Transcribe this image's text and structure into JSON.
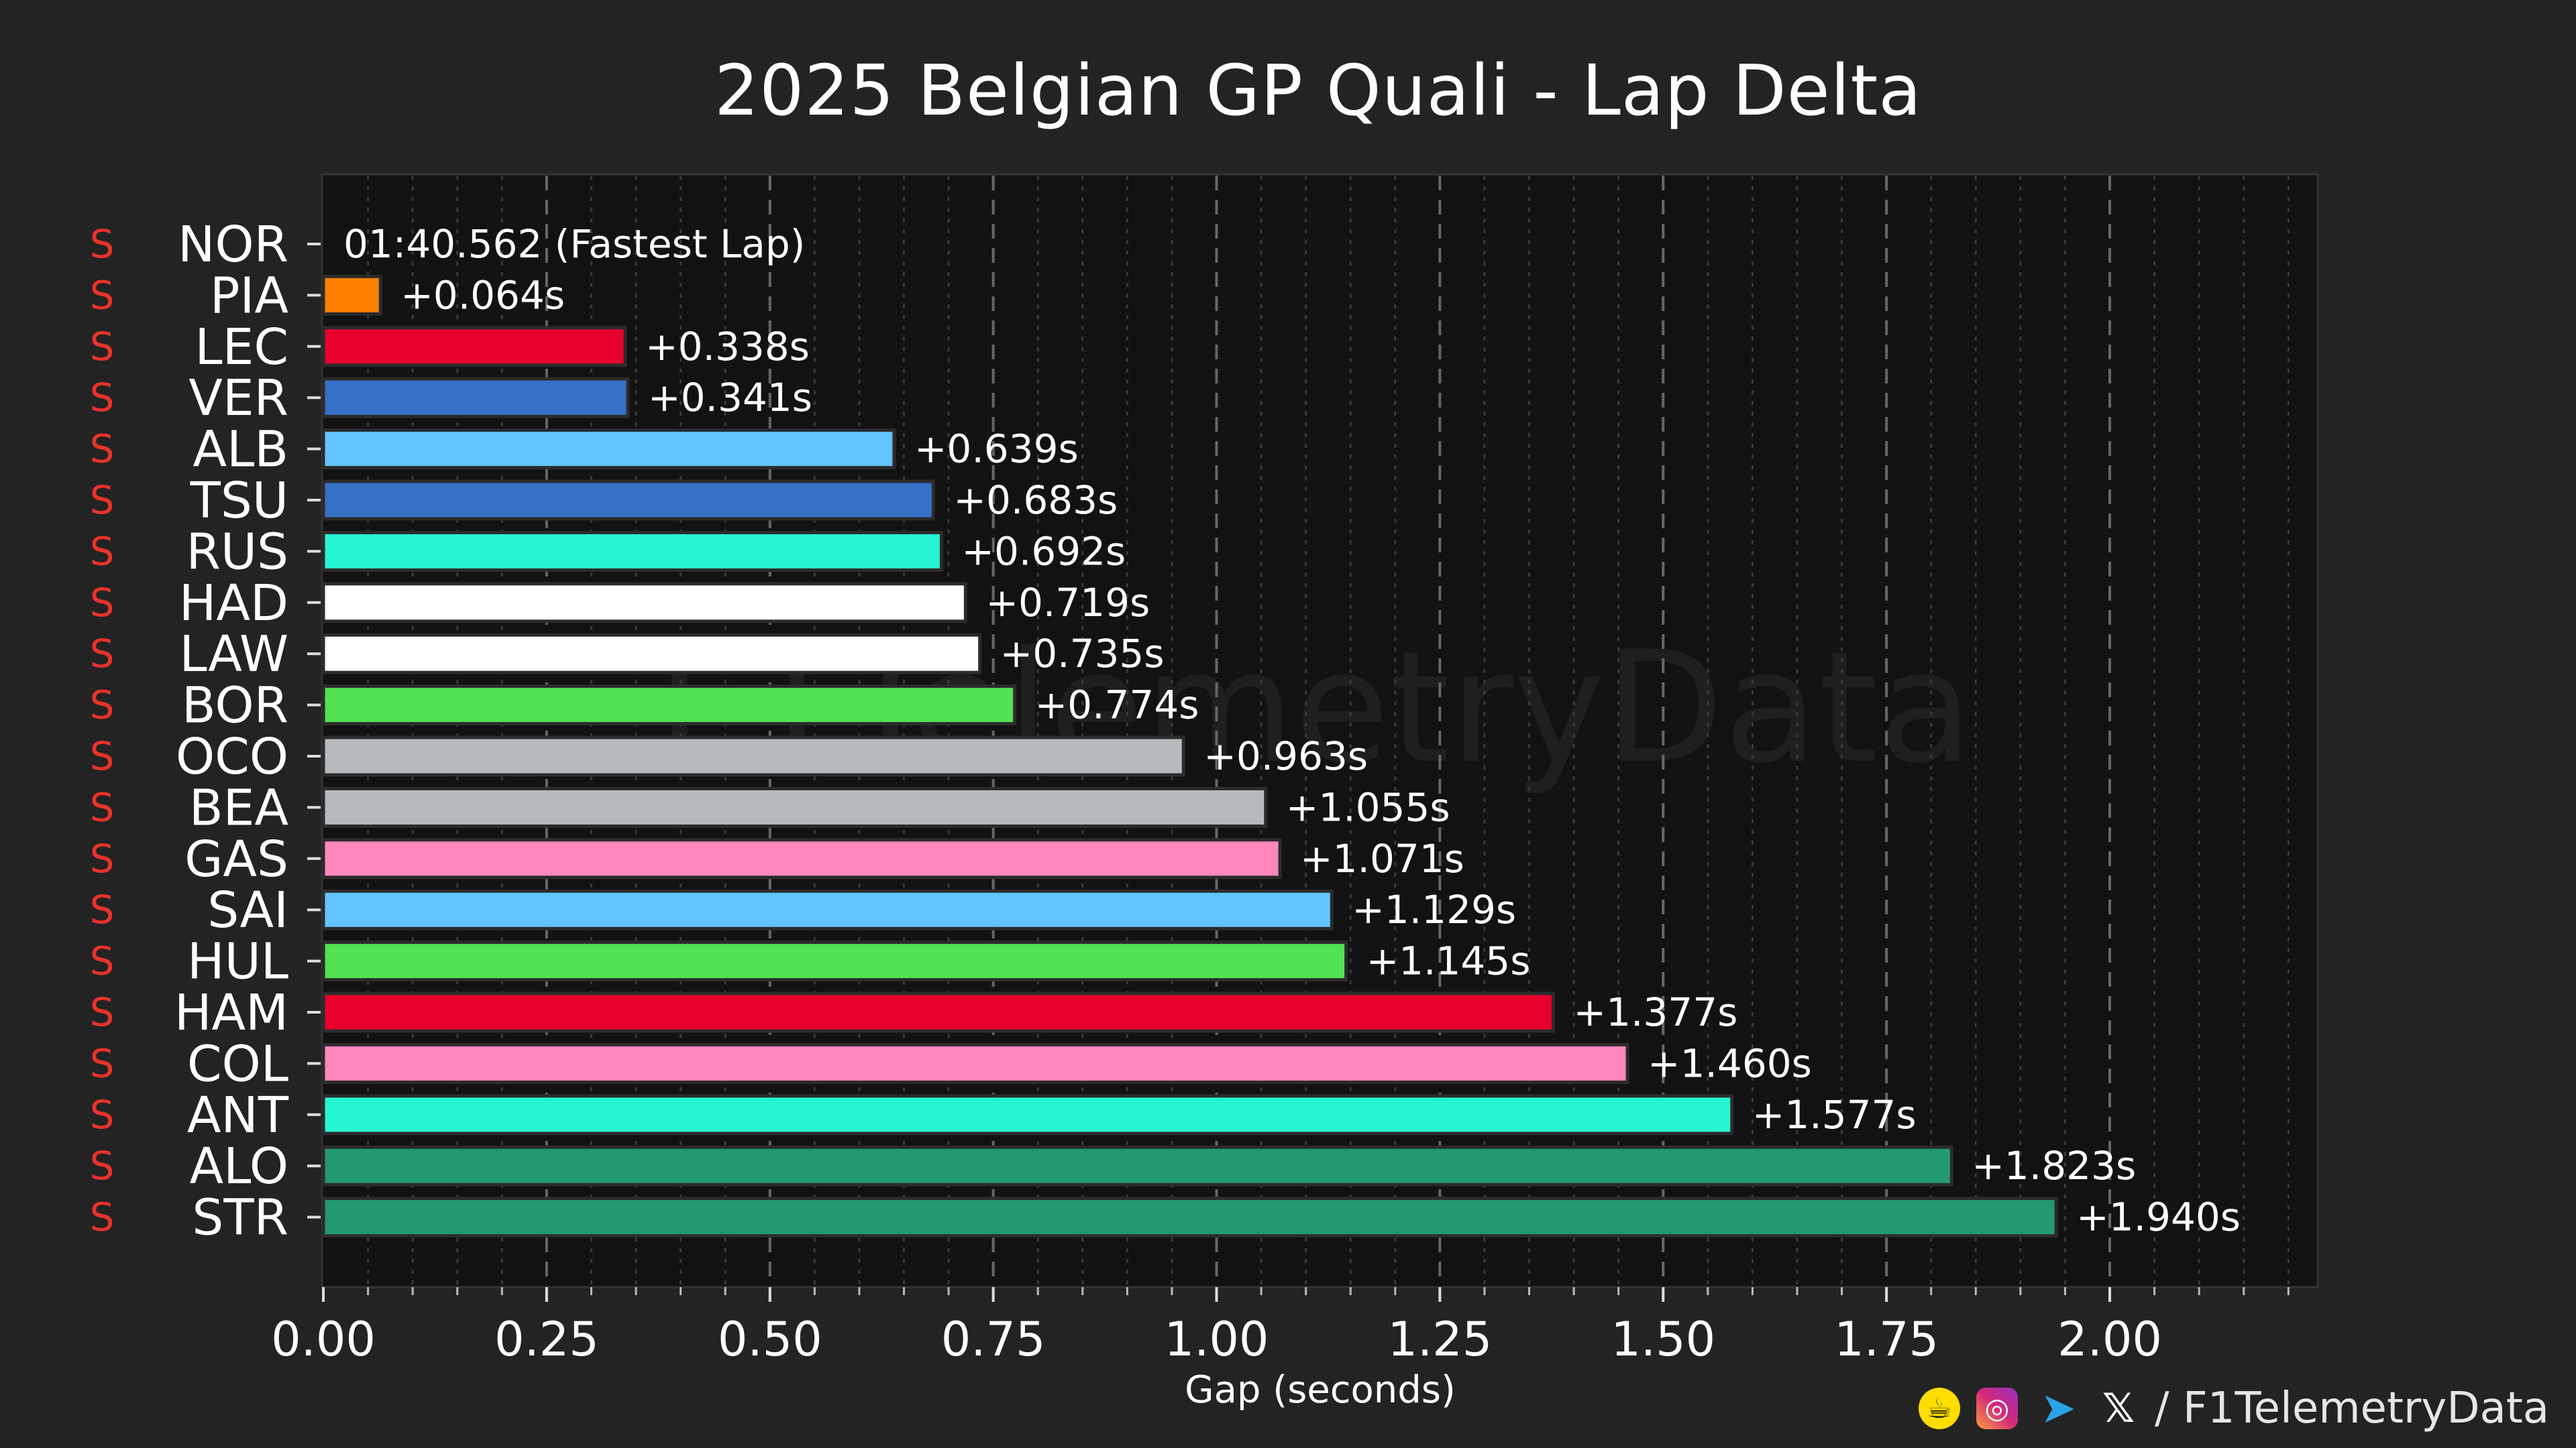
{
  "chart_data": {
    "type": "bar",
    "orientation": "horizontal",
    "title": "2025 Belgian GP Quali - Lap Delta",
    "xlabel": "Gap (seconds)",
    "ylabel": "",
    "xlim": [
      0,
      2.24
    ],
    "xticks": [
      "0.00",
      "0.25",
      "0.50",
      "0.75",
      "1.00",
      "1.25",
      "1.50",
      "1.75",
      "2.00"
    ],
    "grid": "vertical dashed",
    "fastest_lap_label": "01:40.562 (Fastest Lap)",
    "tyre_marker": "S",
    "tyre_color": "#e8332a",
    "categories": [
      "NOR",
      "PIA",
      "LEC",
      "VER",
      "ALB",
      "TSU",
      "RUS",
      "HAD",
      "LAW",
      "BOR",
      "OCO",
      "BEA",
      "GAS",
      "SAI",
      "HUL",
      "HAM",
      "COL",
      "ANT",
      "ALO",
      "STR"
    ],
    "values": [
      0,
      0.064,
      0.338,
      0.341,
      0.639,
      0.683,
      0.692,
      0.719,
      0.735,
      0.774,
      0.963,
      1.055,
      1.071,
      1.129,
      1.145,
      1.377,
      1.46,
      1.577,
      1.823,
      1.94
    ],
    "labels": [
      "",
      "+0.064s",
      "+0.338s",
      "+0.341s",
      "+0.639s",
      "+0.683s",
      "+0.692s",
      "+0.719s",
      "+0.735s",
      "+0.774s",
      "+0.963s",
      "+1.055s",
      "+1.071s",
      "+1.129s",
      "+1.145s",
      "+1.377s",
      "+1.460s",
      "+1.577s",
      "+1.823s",
      "+1.940s"
    ],
    "colors": [
      "#ff8000",
      "#ff8000",
      "#e8002d",
      "#3671c6",
      "#64c4ff",
      "#3671c6",
      "#27f4d2",
      "#ffffff",
      "#ffffff",
      "#52e252",
      "#b6babd",
      "#b6babd",
      "#ff87bc",
      "#64c4ff",
      "#52e252",
      "#e8002d",
      "#ff87bc",
      "#27f4d2",
      "#229971",
      "#229971"
    ],
    "watermark": "F1TelemetryData"
  },
  "footer": {
    "handle": "/ F1TelemetryData",
    "icons": [
      "buymeacoffee-icon",
      "instagram-icon",
      "telegram-icon",
      "x-icon"
    ]
  }
}
